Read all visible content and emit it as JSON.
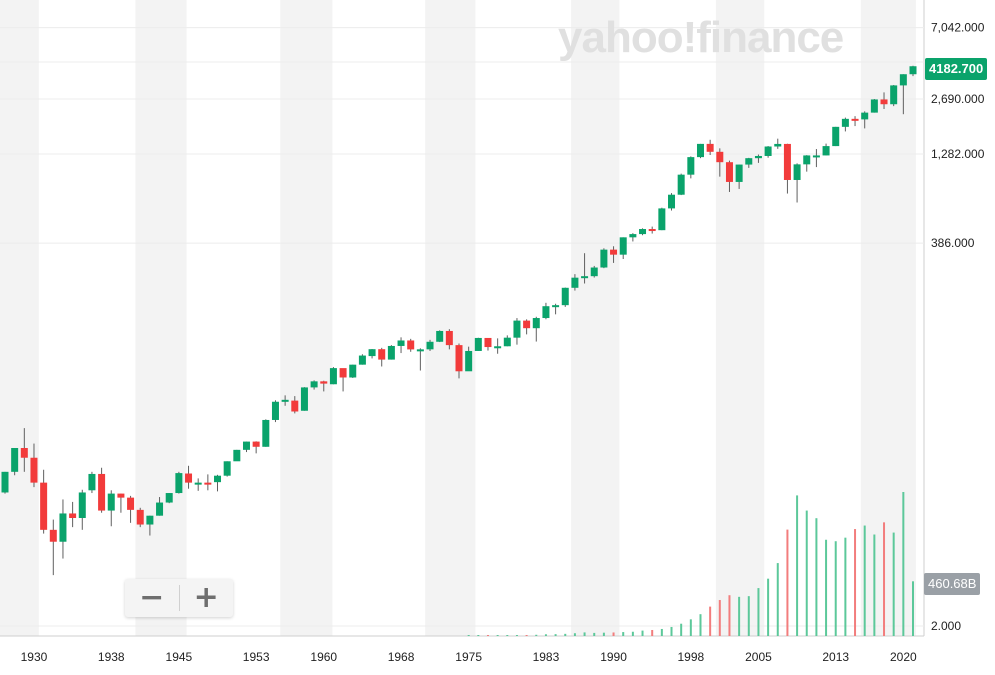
{
  "watermark": "yahoo!finance",
  "controls": {
    "zoom_out_icon": "−",
    "zoom_in_icon": "+"
  },
  "price_label": "4182.700",
  "volume_label": "460.68B",
  "colors": {
    "up": "#0aa36b",
    "down": "#f23b3b",
    "vol_up": "#5cc89a",
    "vol_down": "#f27d7d"
  },
  "chart_data": {
    "type": "candlestick",
    "y_scale": "log",
    "x_tick_labels": [
      "1930",
      "1938",
      "1945",
      "1953",
      "1960",
      "1968",
      "1975",
      "1983",
      "1990",
      "1998",
      "2005",
      "2013",
      "2020"
    ],
    "y_tick_labels": [
      "7,042.000",
      "2,690.000",
      "1,282.000",
      "386.000"
    ],
    "volume_axis_label": "2.000",
    "years": [
      1927,
      1928,
      1929,
      1930,
      1931,
      1932,
      1933,
      1934,
      1935,
      1936,
      1937,
      1938,
      1939,
      1940,
      1941,
      1942,
      1943,
      1944,
      1945,
      1946,
      1947,
      1948,
      1949,
      1950,
      1951,
      1952,
      1953,
      1954,
      1955,
      1956,
      1957,
      1958,
      1959,
      1960,
      1961,
      1962,
      1963,
      1964,
      1965,
      1966,
      1967,
      1968,
      1969,
      1970,
      1971,
      1972,
      1973,
      1974,
      1975,
      1976,
      1977,
      1978,
      1979,
      1980,
      1981,
      1982,
      1983,
      1984,
      1985,
      1986,
      1987,
      1988,
      1989,
      1990,
      1991,
      1992,
      1993,
      1994,
      1995,
      1996,
      1997,
      1998,
      1999,
      2000,
      2001,
      2002,
      2003,
      2004,
      2005,
      2006,
      2007,
      2008,
      2009,
      2010,
      2011,
      2012,
      2013,
      2014,
      2015,
      2016,
      2017,
      2018,
      2019,
      2020,
      2021
    ],
    "open": [
      13.4,
      17.7,
      24.4,
      21.4,
      15.3,
      8.1,
      6.9,
      10.1,
      9.5,
      13.8,
      17.2,
      10.5,
      13.2,
      12.5,
      10.6,
      8.7,
      9.8,
      11.7,
      13.3,
      17.3,
      15.3,
      15.3,
      15.4,
      16.8,
      20.4,
      23.8,
      26.6,
      24.8,
      35.6,
      45.5,
      46.2,
      40.3,
      55.2,
      59.9,
      57.6,
      71.6,
      63.1,
      75.0,
      84.2,
      92.4,
      80.3,
      96.5,
      103.9,
      92.1,
      92.2,
      102.1,
      118.1,
      97.6,
      68.6,
      90.2,
      107.5,
      95.1,
      96.1,
      107.9,
      135.8,
      122.6,
      140.6,
      164.9,
      167.2,
      211.3,
      242.2,
      247.1,
      277.7,
      353.4,
      330.2,
      417.1,
      435.7,
      466.5,
      459.3,
      615.9,
      740.7,
      970.4,
      1229.2,
      1469.3,
      1320.3,
      1148.1,
      879.8,
      1111.9,
      1211.9,
      1248.3,
      1418.3,
      1468.4,
      903.3,
      1115.1,
      1257.6,
      1257.6,
      1426.2,
      1848.4,
      2058.9,
      2043.9,
      2238.8,
      2673.6,
      2506.9,
      3230.8,
      3756.1
    ],
    "high": [
      17.7,
      24.4,
      31.9,
      25.9,
      18.2,
      9.3,
      12.2,
      11.8,
      13.9,
      17.7,
      18.7,
      13.8,
      13.2,
      12.8,
      10.9,
      9.8,
      12.6,
      13.3,
      17.7,
      19.2,
      16.2,
      17.1,
      17.0,
      20.4,
      23.8,
      26.6,
      26.7,
      35.9,
      46.4,
      49.6,
      49.1,
      55.4,
      60.7,
      60.4,
      72.6,
      71.1,
      75.0,
      86.3,
      92.6,
      94.1,
      97.6,
      108.4,
      106.2,
      93.5,
      104.8,
      119.1,
      121.0,
      99.8,
      95.6,
      107.8,
      107.0,
      106.9,
      111.3,
      140.5,
      138.1,
      143.0,
      172.6,
      170.4,
      212.0,
      254.0,
      336.8,
      283.7,
      359.8,
      369.8,
      417.1,
      441.3,
      470.9,
      482.0,
      621.7,
      757.0,
      983.8,
      1241.8,
      1469.3,
      1552.9,
      1383.4,
      1172.5,
      1111.9,
      1217.3,
      1272.7,
      1427.1,
      1576.1,
      1471.8,
      1130.4,
      1262.6,
      1370.6,
      1474.5,
      1848.4,
      2093.5,
      2134.7,
      2277.5,
      2690.2,
      2940.9,
      3247.9,
      3756.1,
      4211.5
    ],
    "low": [
      13.2,
      16.9,
      17.7,
      14.4,
      7.7,
      4.4,
      5.5,
      8.4,
      8.1,
      13.3,
      10.2,
      8.5,
      10.2,
      8.9,
      8.4,
      7.5,
      9.8,
      11.6,
      13.2,
      14.1,
      13.7,
      13.8,
      13.6,
      16.6,
      20.7,
      23.1,
      22.7,
      24.8,
      34.6,
      43.1,
      38.9,
      40.3,
      53.6,
      52.3,
      57.6,
      52.3,
      62.7,
      75.0,
      81.6,
      73.2,
      80.3,
      87.7,
      89.2,
      69.3,
      90.2,
      101.7,
      92.2,
      62.3,
      70.0,
      90.2,
      90.7,
      86.9,
      96.1,
      98.2,
      112.8,
      102.4,
      138.3,
      147.8,
      163.4,
      203.5,
      223.9,
      242.6,
      275.3,
      295.5,
      311.5,
      394.5,
      429.1,
      438.9,
      459.3,
      598.5,
      737.0,
      923.3,
      1212.2,
      1264.7,
      944.8,
      768.6,
      800.7,
      1063.2,
      1137.5,
      1219.3,
      1374.1,
      752.4,
      666.8,
      1010.9,
      1074.8,
      1257.6,
      1426.2,
      1737.9,
      1867.6,
      1810.1,
      2238.8,
      2351.1,
      2443.9,
      2191.9,
      3662.7
    ],
    "close": [
      17.7,
      24.4,
      21.4,
      15.3,
      8.1,
      6.9,
      10.1,
      9.5,
      13.4,
      17.2,
      10.5,
      13.2,
      12.5,
      10.6,
      8.7,
      9.8,
      11.7,
      13.3,
      17.4,
      15.3,
      15.3,
      15.2,
      16.8,
      20.4,
      23.8,
      26.6,
      24.8,
      35.6,
      45.5,
      46.7,
      39.9,
      55.2,
      59.9,
      58.1,
      71.6,
      63.1,
      75.0,
      84.8,
      92.4,
      80.3,
      96.5,
      103.9,
      92.1,
      92.2,
      102.1,
      118.1,
      97.6,
      68.6,
      90.2,
      107.5,
      95.1,
      96.1,
      107.9,
      135.8,
      122.6,
      140.6,
      164.9,
      167.2,
      211.3,
      242.2,
      247.1,
      277.7,
      353.4,
      330.2,
      417.1,
      435.7,
      466.5,
      459.3,
      615.9,
      740.7,
      970.4,
      1229.2,
      1469.3,
      1320.3,
      1148.1,
      879.8,
      1111.9,
      1211.9,
      1248.3,
      1418.3,
      1468.4,
      903.3,
      1115.1,
      1257.6,
      1257.6,
      1426.2,
      1848.4,
      2058.9,
      2043.9,
      2238.8,
      2673.6,
      2506.9,
      3230.8,
      3756.1,
      4182.7
    ],
    "volume": [
      0,
      0,
      0,
      0,
      0,
      0,
      0,
      0,
      0,
      0,
      0,
      0,
      0,
      0,
      0,
      0,
      0,
      0,
      0,
      0,
      0,
      0,
      0,
      0,
      0,
      0,
      0,
      0,
      0,
      0,
      0,
      0,
      0,
      0,
      0,
      0,
      0,
      0,
      0,
      0,
      0,
      0,
      0,
      0,
      0,
      0,
      0,
      0,
      0.9,
      1.1,
      1.1,
      1.4,
      1.7,
      2.3,
      2.6,
      3.9,
      5.5,
      5.9,
      6.9,
      8.9,
      11.5,
      9.9,
      10.6,
      11.3,
      12.6,
      13.6,
      17.3,
      19.2,
      22.5,
      28.9,
      39.3,
      53.3,
      69.8,
      94.0,
      115.1,
      130.5,
      125.3,
      127.5,
      153.3,
      183.4,
      233.3,
      340.4,
      449.8,
      401.3,
      376.9,
      307.9,
      303.2,
      314.6,
      342.1,
      353.4,
      324.7,
      363.6,
      330.9,
      460.7,
      175.0
    ]
  }
}
